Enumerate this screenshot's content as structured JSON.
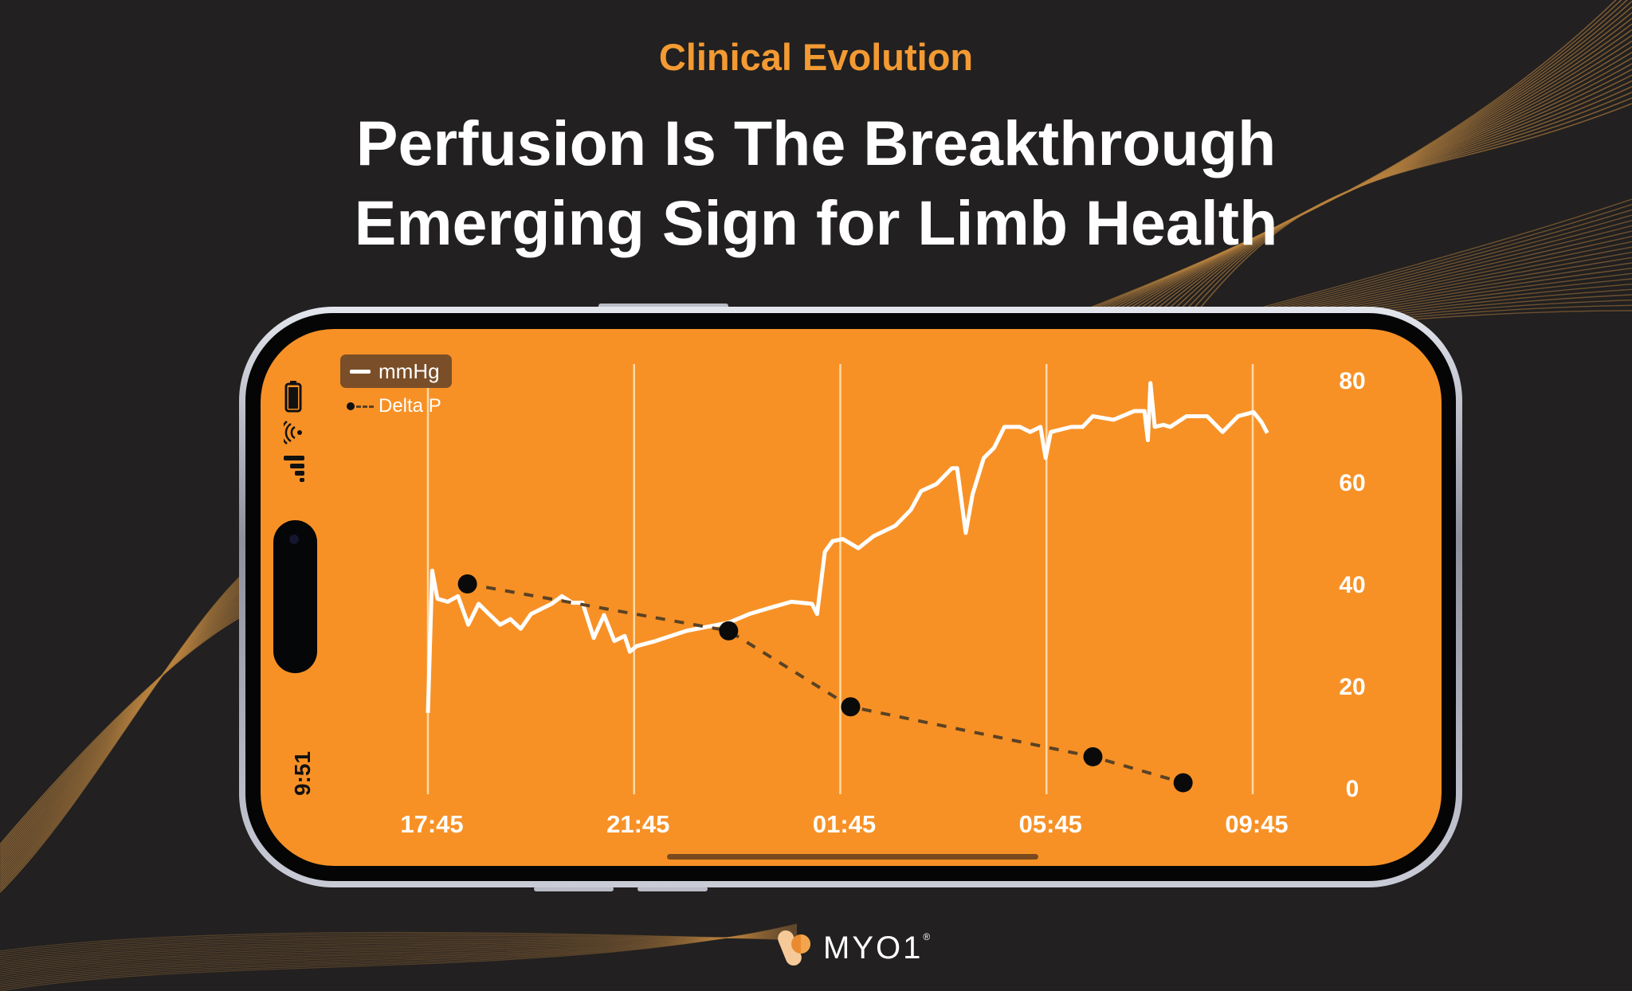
{
  "header": {
    "eyebrow": "Clinical Evolution",
    "title_line1": "Perfusion Is The Breakthrough",
    "title_line2": "Emerging Sign for Limb Health"
  },
  "colors": {
    "background": "#222020",
    "accent": "#f39a33",
    "screen": "#f79126",
    "decor_lines": "#b7823f"
  },
  "phone": {
    "status_time": "9:51",
    "icons": [
      "battery-icon",
      "nfc-wireless-icon",
      "signal-icon"
    ]
  },
  "legend": {
    "series1": "mmHg",
    "series2": "Delta P"
  },
  "logo": {
    "wordmark": "MYO1",
    "reg": "®"
  },
  "chart_data": {
    "type": "line",
    "xlabel": "",
    "ylabel": "",
    "x_ticks": [
      "17:45",
      "21:45",
      "01:45",
      "05:45",
      "09:45"
    ],
    "y_ticks": [
      "0",
      "20",
      "40",
      "60",
      "80"
    ],
    "ylim": [
      0,
      80
    ],
    "grid": "vertical",
    "legend_position": "top-left",
    "series": [
      {
        "name": "mmHg",
        "style": "solid",
        "color": "#ffffff",
        "points": [
          [
            "17:45",
            14.7
          ],
          [
            "17:50",
            42.6
          ],
          [
            "17:56",
            37.1
          ],
          [
            "18:08",
            36.5
          ],
          [
            "18:20",
            37.6
          ],
          [
            "18:32",
            32.0
          ],
          [
            "18:44",
            36.1
          ],
          [
            "18:56",
            34.1
          ],
          [
            "19:09",
            32.0
          ],
          [
            "19:21",
            33.1
          ],
          [
            "19:33",
            31.2
          ],
          [
            "19:45",
            34.1
          ],
          [
            "19:57",
            35.1
          ],
          [
            "20:09",
            36.1
          ],
          [
            "20:21",
            37.6
          ],
          [
            "20:33",
            36.3
          ],
          [
            "20:45",
            36.3
          ],
          [
            "20:58",
            29.4
          ],
          [
            "21:10",
            33.9
          ],
          [
            "21:22",
            28.8
          ],
          [
            "21:34",
            29.8
          ],
          [
            "21:40",
            26.7
          ],
          [
            "21:48",
            27.8
          ],
          [
            "22:10",
            28.8
          ],
          [
            "22:46",
            30.8
          ],
          [
            "23:35",
            32.4
          ],
          [
            "23:59",
            34.1
          ],
          [
            "00:23",
            35.3
          ],
          [
            "00:48",
            36.5
          ],
          [
            "01:12",
            36.1
          ],
          [
            "01:18",
            34.1
          ],
          [
            "01:27",
            46.3
          ],
          [
            "01:36",
            48.4
          ],
          [
            "01:48",
            48.8
          ],
          [
            "02:06",
            47.0
          ],
          [
            "02:24",
            49.4
          ],
          [
            "02:49",
            51.4
          ],
          [
            "03:07",
            54.5
          ],
          [
            "03:19",
            58.2
          ],
          [
            "03:37",
            59.6
          ],
          [
            "03:55",
            62.7
          ],
          [
            "04:01",
            62.7
          ],
          [
            "04:11",
            50.0
          ],
          [
            "04:19",
            57.6
          ],
          [
            "04:32",
            64.7
          ],
          [
            "04:44",
            66.7
          ],
          [
            "04:56",
            70.8
          ],
          [
            "05:14",
            70.8
          ],
          [
            "05:26",
            69.8
          ],
          [
            "05:38",
            70.8
          ],
          [
            "05:44",
            64.7
          ],
          [
            "05:50",
            69.8
          ],
          [
            "06:14",
            70.8
          ],
          [
            "06:27",
            70.8
          ],
          [
            "06:39",
            72.9
          ],
          [
            "07:03",
            72.2
          ],
          [
            "07:27",
            73.9
          ],
          [
            "07:39",
            73.9
          ],
          [
            "07:43",
            68.2
          ],
          [
            "07:46",
            79.4
          ],
          [
            "07:51",
            70.8
          ],
          [
            "08:01",
            71.2
          ],
          [
            "08:09",
            70.8
          ],
          [
            "08:28",
            72.9
          ],
          [
            "08:52",
            72.9
          ],
          [
            "09:10",
            69.8
          ],
          [
            "09:28",
            72.9
          ],
          [
            "09:46",
            73.7
          ],
          [
            "09:55",
            71.8
          ],
          [
            "10:02",
            69.6
          ]
        ]
      },
      {
        "name": "Delta P",
        "style": "dashed-markers",
        "color": "#111111",
        "points": [
          [
            "18:31",
            40.0
          ],
          [
            "23:35",
            30.8
          ],
          [
            "01:57",
            15.9
          ],
          [
            "06:39",
            6.1
          ],
          [
            "08:24",
            1.0
          ]
        ]
      }
    ]
  }
}
